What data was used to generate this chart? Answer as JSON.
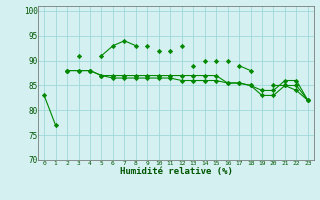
{
  "xlabel": "Humidité relative (%)",
  "bg_color": "#d4f0f0",
  "grid_color": "#a0d8d8",
  "line_color": "#008800",
  "xlim": [
    -0.5,
    23.5
  ],
  "ylim": [
    70,
    101
  ],
  "yticks": [
    70,
    75,
    80,
    85,
    90,
    95,
    100
  ],
  "xticks": [
    0,
    1,
    2,
    3,
    4,
    5,
    6,
    7,
    8,
    9,
    10,
    11,
    12,
    13,
    14,
    15,
    16,
    17,
    18,
    19,
    20,
    21,
    22,
    23
  ],
  "line1_y": [
    83,
    77,
    null,
    91,
    null,
    91,
    93,
    94,
    93,
    null,
    92,
    null,
    93,
    null,
    90,
    null,
    90,
    null,
    null,
    null,
    null,
    null,
    null,
    null
  ],
  "line2_y": [
    null,
    null,
    88,
    null,
    88,
    null,
    null,
    null,
    null,
    93,
    null,
    92,
    null,
    89,
    null,
    90,
    null,
    89,
    88,
    null,
    85,
    85,
    84,
    82
  ],
  "line3_y": [
    null,
    null,
    88,
    88,
    88,
    87,
    86.5,
    86.5,
    86.5,
    86.5,
    86.5,
    86.5,
    86,
    86,
    86,
    86,
    85.5,
    85.5,
    85,
    83,
    83,
    85,
    85,
    82
  ],
  "line4_y": [
    null,
    null,
    88,
    88,
    88,
    87,
    87,
    87,
    87,
    87,
    87,
    87,
    87,
    87,
    87,
    87,
    85.5,
    85.5,
    85,
    84,
    84,
    86,
    86,
    82
  ],
  "fig_width": 3.2,
  "fig_height": 2.0,
  "dpi": 100
}
